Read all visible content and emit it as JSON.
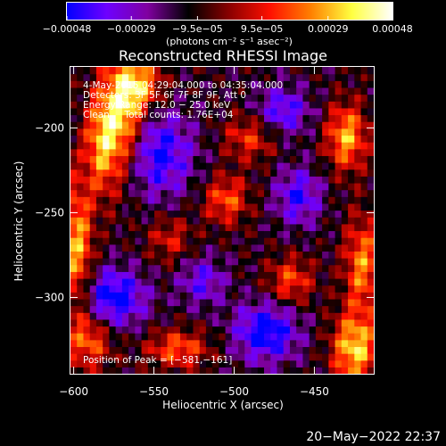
{
  "chart_data": {
    "type": "heatmap",
    "title": "Reconstructed RHESSI Image",
    "xlabel": "Heliocentric X (arcsec)",
    "ylabel": "Heliocentric Y (arcsec)",
    "xlim": [
      -602,
      -413
    ],
    "ylim": [
      -345,
      -164
    ],
    "x_ticks": [
      -600,
      -550,
      -500,
      -450
    ],
    "x_tick_labels": [
      "−600",
      "−550",
      "−500",
      "−450"
    ],
    "y_ticks": [
      -200,
      -250,
      -300
    ],
    "y_tick_labels": [
      "−200",
      "−250",
      "−300"
    ],
    "colorbar": {
      "range": [
        -0.00048,
        0.00048
      ],
      "ticks": [
        -0.00048,
        -0.00029,
        -9.5e-05,
        9.5e-05,
        0.00029,
        0.00048
      ],
      "tick_labels": [
        "−0.00048",
        "−0.00029",
        "−9.5e−05",
        "9.5e−05",
        "0.00029",
        "0.00048"
      ],
      "unit_label": "(photons cm⁻² s⁻¹ asec⁻²)",
      "colors": [
        "#0000ff",
        "#6e00ff",
        "#8000a0",
        "#000000",
        "#8a0000",
        "#ff1000",
        "#ff8000",
        "#ffff40",
        "#ffffff"
      ]
    },
    "annotations": {
      "time_range": "4-May-2015 04:29:04.000 to 04:35:04.000",
      "detectors": "Detectors: 3F 5F 6F 7F 8F 9F, Att 0",
      "energy_range": "Energy Range: 12.0 − 25.0 keV",
      "method_counts": "Clean     Total counts: 1.76E+04",
      "peak_position": "Position of Peak = [−581,−161]"
    },
    "grid_resolution": [
      47,
      45
    ],
    "features": [
      {
        "x": -568,
        "y": -190,
        "value": 0.00045,
        "sx": 9,
        "sy": 26
      },
      {
        "x": -582,
        "y": -208,
        "value": 0.0004,
        "sx": 8,
        "sy": 22
      },
      {
        "x": -557,
        "y": -175,
        "value": 0.0003,
        "sx": 10,
        "sy": 10
      },
      {
        "x": -425,
        "y": -330,
        "value": 0.00045,
        "sx": 10,
        "sy": 15
      },
      {
        "x": -420,
        "y": -280,
        "value": 0.00035,
        "sx": 8,
        "sy": 20
      },
      {
        "x": -430,
        "y": -205,
        "value": 0.0004,
        "sx": 9,
        "sy": 14
      },
      {
        "x": -598,
        "y": -270,
        "value": 0.0004,
        "sx": 7,
        "sy": 28
      },
      {
        "x": -590,
        "y": -325,
        "value": 0.0003,
        "sx": 10,
        "sy": 12
      },
      {
        "x": -535,
        "y": -330,
        "value": 0.0003,
        "sx": 14,
        "sy": 8
      },
      {
        "x": -505,
        "y": -242,
        "value": 0.0003,
        "sx": 10,
        "sy": 10
      },
      {
        "x": -490,
        "y": -205,
        "value": 0.00025,
        "sx": 12,
        "sy": 10
      },
      {
        "x": -465,
        "y": -290,
        "value": 0.00028,
        "sx": 10,
        "sy": 10
      },
      {
        "x": -540,
        "y": -265,
        "value": 0.0002,
        "sx": 10,
        "sy": 10
      },
      {
        "x": -575,
        "y": -300,
        "value": -0.0004,
        "sx": 14,
        "sy": 12
      },
      {
        "x": -548,
        "y": -215,
        "value": -0.00035,
        "sx": 16,
        "sy": 18
      },
      {
        "x": -480,
        "y": -320,
        "value": -0.0004,
        "sx": 14,
        "sy": 12
      },
      {
        "x": -460,
        "y": -240,
        "value": -0.0003,
        "sx": 10,
        "sy": 12
      },
      {
        "x": -470,
        "y": -190,
        "value": -0.0003,
        "sx": 12,
        "sy": 10
      },
      {
        "x": -520,
        "y": -290,
        "value": -0.00025,
        "sx": 10,
        "sy": 10
      }
    ]
  },
  "footer": {
    "timestamp": "20−May−2022 22:37"
  }
}
